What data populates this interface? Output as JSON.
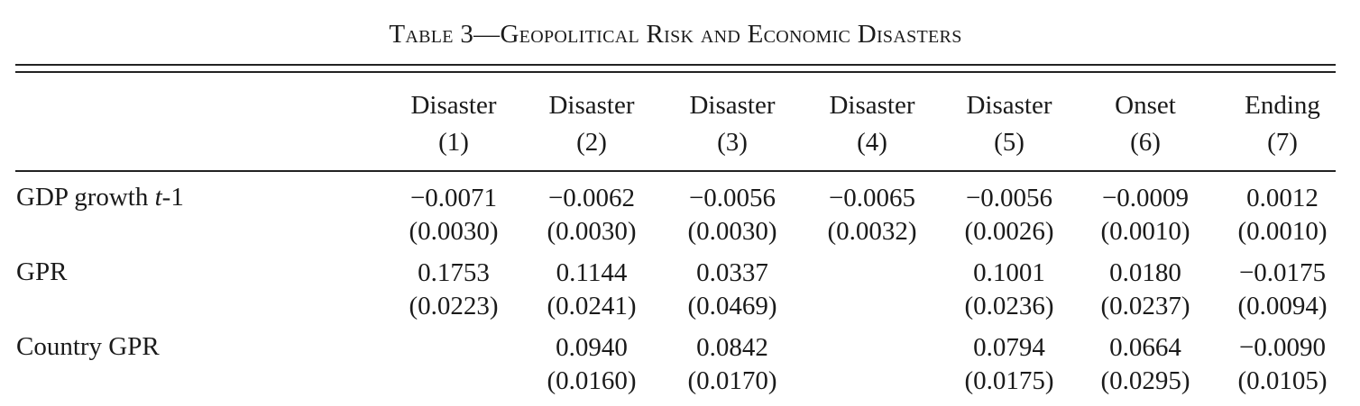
{
  "title": "Table 3—Geopolitical Risk and Economic Disasters",
  "columns": [
    {
      "name": "Disaster",
      "num": "(1)"
    },
    {
      "name": "Disaster",
      "num": "(2)"
    },
    {
      "name": "Disaster",
      "num": "(3)"
    },
    {
      "name": "Disaster",
      "num": "(4)"
    },
    {
      "name": "Disaster",
      "num": "(5)"
    },
    {
      "name": "Onset",
      "num": "(6)"
    },
    {
      "name": "Ending",
      "num": "(7)"
    }
  ],
  "rows": [
    {
      "label_main": "GDP growth ",
      "label_italic": "t",
      "label_suffix": "-1",
      "coef": [
        "−0.0071",
        "−0.0062",
        "−0.0056",
        "−0.0065",
        "−0.0056",
        "−0.0009",
        "0.0012"
      ],
      "se": [
        "(0.0030)",
        "(0.0030)",
        "(0.0030)",
        "(0.0032)",
        "(0.0026)",
        "(0.0010)",
        "(0.0010)"
      ]
    },
    {
      "label_main": "GPR",
      "label_italic": "",
      "label_suffix": "",
      "coef": [
        "0.1753",
        "0.1144",
        "0.0337",
        "",
        "0.1001",
        "0.0180",
        "−0.0175"
      ],
      "se": [
        "(0.0223)",
        "(0.0241)",
        "(0.0469)",
        "",
        "(0.0236)",
        "(0.0237)",
        "(0.0094)"
      ]
    },
    {
      "label_main": "Country GPR",
      "label_italic": "",
      "label_suffix": "",
      "coef": [
        "",
        "0.0940",
        "0.0842",
        "",
        "0.0794",
        "0.0664",
        "−0.0090"
      ],
      "se": [
        "",
        "(0.0160)",
        "(0.0170)",
        "",
        "(0.0175)",
        "(0.0295)",
        "(0.0105)"
      ]
    }
  ]
}
